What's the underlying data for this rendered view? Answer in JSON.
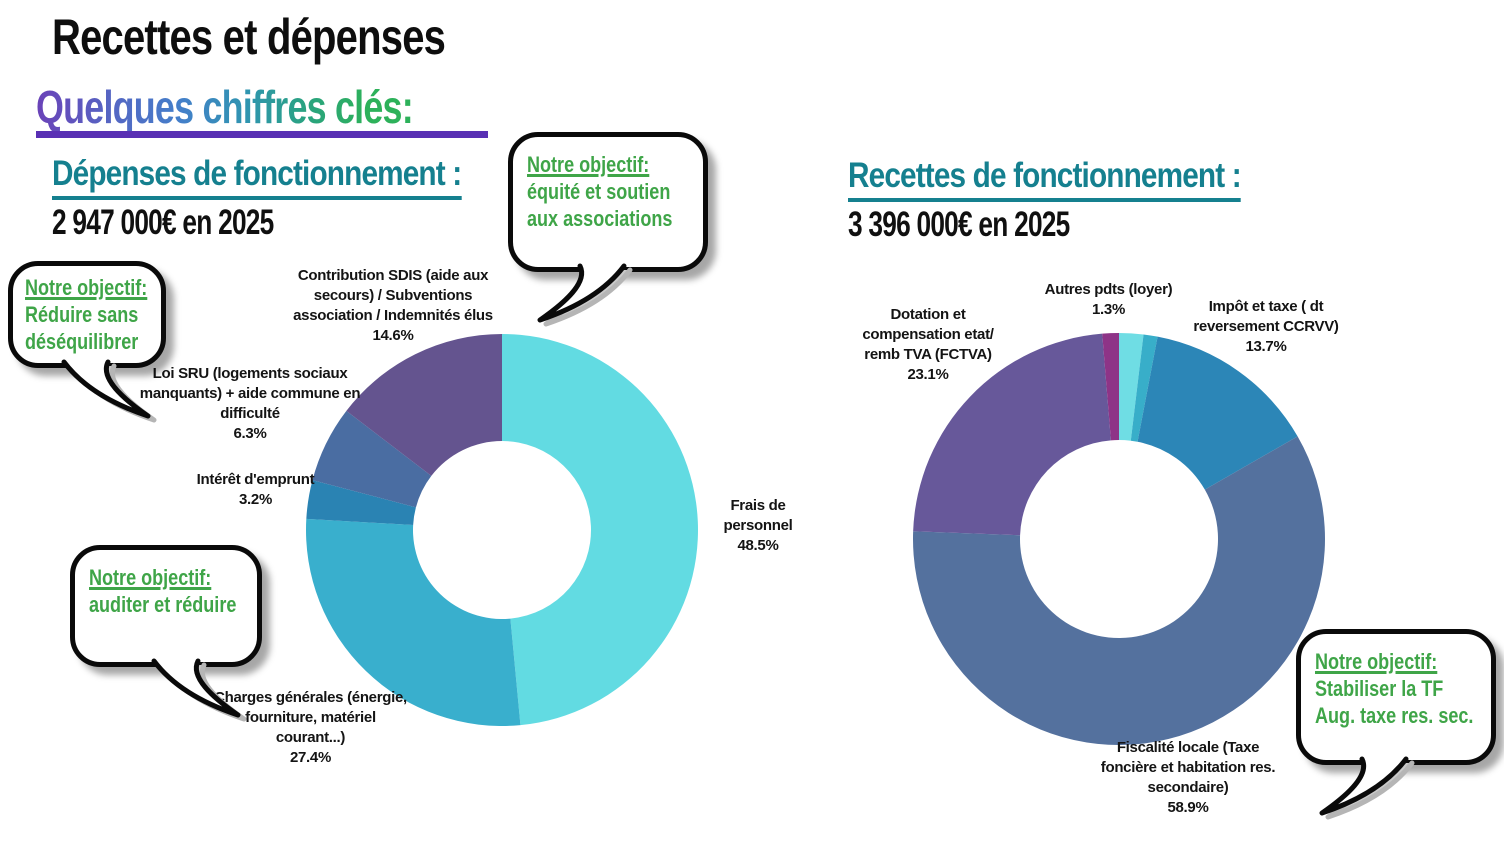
{
  "page": {
    "title": "Recettes et dépenses",
    "subtitle": "Quelques chiffres clés:"
  },
  "sections": {
    "left": {
      "heading": "Dépenses de fonctionnement :",
      "amount": "2 947 000€ en 2025"
    },
    "right": {
      "heading": "Recettes de fonctionnement :",
      "amount": "3 396 000€ en 2025"
    }
  },
  "callouts": [
    {
      "title": "Notre objectif:",
      "body": "Réduire sans\ndéséquilibrer"
    },
    {
      "title": "Notre objectif:",
      "body": "équité et soutien\naux associations"
    },
    {
      "title": "Notre objectif:",
      "body": "auditer et réduire"
    },
    {
      "title": "Notre objectif:",
      "body": "Stabiliser la TF\nAug. taxe res. sec."
    }
  ],
  "colors": {
    "heading_teal": "#15808f",
    "callout_green": "#3fa548",
    "subtitle_underline_purple": "#5930b4",
    "bubble_border": "#0a0a0a"
  },
  "chart_data": [
    {
      "type": "pie",
      "variant": "donut",
      "title": "Dépenses de fonctionnement",
      "total_label": "2 947 000€ en 2025",
      "start_angle_deg": -90,
      "direction": "clockwise",
      "segments": [
        {
          "label": "Frais de personnel",
          "value": 48.5,
          "pct_label": "48.5%",
          "color": "#62dbe2"
        },
        {
          "label": "Charges générales (énergie,\nfourniture, matériel\ncourant...)",
          "value": 27.4,
          "pct_label": "27.4%",
          "color": "#39afcd"
        },
        {
          "label": "Intérêt d'emprunt",
          "value": 3.2,
          "pct_label": "3.2%",
          "color": "#2a83b3"
        },
        {
          "label": "Loi SRU (logements sociaux\nmanquants) + aide commune en\ndifficulté",
          "value": 6.3,
          "pct_label": "6.3%",
          "color": "#4a6da2"
        },
        {
          "label": "Contribution SDIS (aide aux\nsecours) / Subventions\nassociation / Indemnités élus",
          "value": 14.6,
          "pct_label": "14.6%",
          "color": "#64548f"
        }
      ]
    },
    {
      "type": "pie",
      "variant": "donut",
      "title": "Recettes de fonctionnement",
      "total_label": "3 396 000€ en 2025",
      "start_angle_deg": -90,
      "direction": "clockwise",
      "segments": [
        {
          "label": null,
          "value": 1.9,
          "pct_label": null,
          "color": "#6fdde4"
        },
        {
          "label": null,
          "value": 1.1,
          "pct_label": null,
          "color": "#38aec9"
        },
        {
          "label": "Impôt et taxe ( dt\nreversement CCRVV)",
          "value": 13.7,
          "pct_label": "13.7%",
          "color": "#2c86b7"
        },
        {
          "label": "Fiscalité locale (Taxe\nfoncière et habitation res.\nsecondaire)",
          "value": 58.9,
          "pct_label": "58.9%",
          "color": "#54719e"
        },
        {
          "label": "Dotation et\ncompensation etat/\nremb TVA (FCTVA)",
          "value": 23.1,
          "pct_label": "23.1%",
          "color": "#67589a"
        },
        {
          "label": "Autres pdts (loyer)",
          "value": 1.3,
          "pct_label": "1.3%",
          "color": "#8e3487"
        }
      ]
    }
  ]
}
